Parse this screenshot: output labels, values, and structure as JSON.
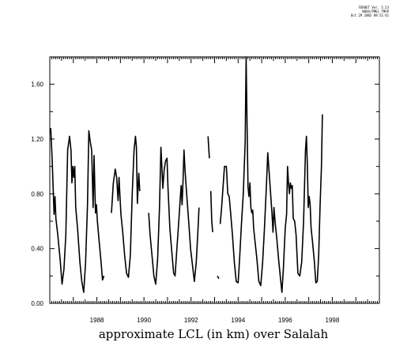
{
  "header": {
    "line1": "FERRET Ver. 5.53",
    "line2": "NOAA/PMEL TMAP",
    "line3": "Oct 29 2002 09:51:41"
  },
  "chart_data": {
    "type": "line",
    "title": "approximate LCL (in km) over Salalah",
    "xlabel": "",
    "ylabel": "",
    "xlim": [
      1986.0,
      2000.0
    ],
    "ylim": [
      0.0,
      1.8
    ],
    "y_ticks": [
      0.0,
      0.4,
      0.8,
      1.2,
      1.6
    ],
    "y_tick_labels": [
      "0.00",
      "0.40",
      "0.80",
      "1.20",
      "1.60"
    ],
    "x_ticks": [
      1988,
      1990,
      1992,
      1994,
      1996,
      1998
    ],
    "x_tick_labels": [
      "1988",
      "1990",
      "1992",
      "1994",
      "1996",
      "1998"
    ],
    "grid": false,
    "color": "#000000",
    "series": [
      {
        "segments": [
          [
            [
              1986.04,
              1.28
            ],
            [
              1986.1,
              1.05
            ],
            [
              1986.18,
              0.65
            ],
            [
              1986.22,
              0.78
            ],
            [
              1986.26,
              0.62
            ],
            [
              1986.34,
              0.5
            ],
            [
              1986.44,
              0.32
            ],
            [
              1986.52,
              0.14
            ],
            [
              1986.6,
              0.25
            ],
            [
              1986.68,
              0.5
            ],
            [
              1986.76,
              1.12
            ],
            [
              1986.84,
              1.22
            ],
            [
              1986.9,
              1.12
            ],
            [
              1986.94,
              0.88
            ],
            [
              1986.98,
              1.0
            ],
            [
              1987.02,
              0.92
            ],
            [
              1987.06,
              1.0
            ],
            [
              1987.1,
              0.7
            ],
            [
              1987.18,
              0.55
            ],
            [
              1987.28,
              0.3
            ],
            [
              1987.36,
              0.16
            ],
            [
              1987.44,
              0.08
            ],
            [
              1987.52,
              0.3
            ],
            [
              1987.6,
              0.72
            ],
            [
              1987.66,
              1.26
            ],
            [
              1987.72,
              1.18
            ],
            [
              1987.78,
              1.12
            ],
            [
              1987.84,
              0.7
            ],
            [
              1987.88,
              1.08
            ],
            [
              1987.94,
              0.66
            ],
            [
              1987.98,
              0.72
            ],
            [
              1988.02,
              0.6
            ],
            [
              1988.1,
              0.45
            ],
            [
              1988.18,
              0.3
            ],
            [
              1988.24,
              0.17
            ],
            [
              1988.3,
              0.2
            ]
          ],
          [
            [
              1988.62,
              0.66
            ],
            [
              1988.7,
              0.88
            ],
            [
              1988.78,
              0.98
            ],
            [
              1988.84,
              0.92
            ],
            [
              1988.9,
              0.75
            ],
            [
              1988.94,
              0.92
            ],
            [
              1988.98,
              0.78
            ],
            [
              1989.02,
              0.65
            ],
            [
              1989.1,
              0.52
            ],
            [
              1989.18,
              0.35
            ],
            [
              1989.26,
              0.22
            ],
            [
              1989.34,
              0.19
            ],
            [
              1989.42,
              0.35
            ],
            [
              1989.5,
              0.8
            ],
            [
              1989.58,
              1.12
            ],
            [
              1989.64,
              1.22
            ],
            [
              1989.68,
              1.14
            ],
            [
              1989.72,
              0.73
            ],
            [
              1989.78,
              0.95
            ],
            [
              1989.82,
              0.82
            ]
          ],
          [
            [
              1990.2,
              0.66
            ],
            [
              1990.26,
              0.5
            ],
            [
              1990.34,
              0.35
            ],
            [
              1990.42,
              0.2
            ],
            [
              1990.5,
              0.14
            ],
            [
              1990.58,
              0.32
            ],
            [
              1990.66,
              0.7
            ],
            [
              1990.72,
              1.14
            ],
            [
              1990.76,
              1.0
            ],
            [
              1990.8,
              0.84
            ],
            [
              1990.86,
              0.98
            ],
            [
              1990.92,
              1.04
            ],
            [
              1990.98,
              1.06
            ],
            [
              1991.02,
              0.85
            ],
            [
              1991.1,
              0.55
            ],
            [
              1991.18,
              0.38
            ],
            [
              1991.26,
              0.22
            ],
            [
              1991.32,
              0.2
            ],
            [
              1991.4,
              0.4
            ],
            [
              1991.48,
              0.6
            ],
            [
              1991.54,
              0.76
            ],
            [
              1991.58,
              0.86
            ],
            [
              1991.62,
              0.72
            ],
            [
              1991.66,
              0.9
            ],
            [
              1991.7,
              1.12
            ],
            [
              1991.74,
              0.98
            ],
            [
              1991.82,
              0.78
            ],
            [
              1991.9,
              0.6
            ],
            [
              1991.98,
              0.4
            ],
            [
              1992.06,
              0.28
            ],
            [
              1992.14,
              0.16
            ],
            [
              1992.22,
              0.3
            ],
            [
              1992.3,
              0.55
            ],
            [
              1992.34,
              0.7
            ]
          ]
        ]
      },
      {
        "segments": [
          [
            [
              1992.72,
              1.22
            ],
            [
              1992.78,
              1.06
            ]
          ],
          [
            [
              1992.84,
              0.82
            ],
            [
              1992.88,
              0.6
            ],
            [
              1992.92,
              0.52
            ]
          ],
          [
            [
              1993.12,
              0.2
            ],
            [
              1993.18,
              0.18
            ]
          ]
        ]
      },
      {
        "segments": [
          [
            [
              1993.24,
              0.58
            ],
            [
              1993.3,
              0.7
            ],
            [
              1993.36,
              0.85
            ],
            [
              1993.42,
              1.0
            ],
            [
              1993.5,
              1.0
            ],
            [
              1993.56,
              0.8
            ],
            [
              1993.62,
              0.78
            ],
            [
              1993.68,
              0.66
            ],
            [
              1993.76,
              0.5
            ],
            [
              1993.84,
              0.3
            ],
            [
              1993.92,
              0.16
            ],
            [
              1994.0,
              0.15
            ],
            [
              1994.06,
              0.32
            ],
            [
              1994.14,
              0.58
            ],
            [
              1994.22,
              0.8
            ],
            [
              1994.3,
              1.18
            ],
            [
              1994.34,
              1.8
            ],
            [
              1994.38,
              1.3
            ],
            [
              1994.42,
              0.85
            ],
            [
              1994.46,
              0.78
            ],
            [
              1994.5,
              0.88
            ],
            [
              1994.54,
              0.7
            ],
            [
              1994.58,
              0.66
            ],
            [
              1994.62,
              0.68
            ],
            [
              1994.66,
              0.55
            ],
            [
              1994.72,
              0.45
            ],
            [
              1994.8,
              0.32
            ],
            [
              1994.88,
              0.16
            ],
            [
              1994.96,
              0.13
            ],
            [
              1995.04,
              0.3
            ],
            [
              1995.12,
              0.55
            ],
            [
              1995.2,
              0.85
            ],
            [
              1995.26,
              1.1
            ],
            [
              1995.32,
              0.95
            ],
            [
              1995.38,
              0.8
            ],
            [
              1995.44,
              0.65
            ],
            [
              1995.48,
              0.52
            ],
            [
              1995.52,
              0.7
            ],
            [
              1995.58,
              0.58
            ],
            [
              1995.64,
              0.48
            ],
            [
              1995.72,
              0.32
            ],
            [
              1995.8,
              0.18
            ],
            [
              1995.86,
              0.08
            ],
            [
              1995.92,
              0.25
            ],
            [
              1996.0,
              0.55
            ],
            [
              1996.06,
              0.65
            ],
            [
              1996.1,
              1.0
            ],
            [
              1996.14,
              0.88
            ],
            [
              1996.18,
              0.8
            ],
            [
              1996.22,
              0.88
            ],
            [
              1996.26,
              0.84
            ],
            [
              1996.3,
              0.86
            ],
            [
              1996.34,
              0.62
            ],
            [
              1996.4,
              0.6
            ],
            [
              1996.46,
              0.5
            ],
            [
              1996.54,
              0.22
            ],
            [
              1996.62,
              0.2
            ],
            [
              1996.7,
              0.3
            ],
            [
              1996.78,
              0.6
            ],
            [
              1996.86,
              1.12
            ],
            [
              1996.9,
              1.22
            ],
            [
              1996.94,
              1.0
            ],
            [
              1996.98,
              0.7
            ],
            [
              1997.02,
              0.78
            ],
            [
              1997.06,
              0.72
            ],
            [
              1997.1,
              0.55
            ],
            [
              1997.16,
              0.45
            ],
            [
              1997.24,
              0.3
            ],
            [
              1997.3,
              0.15
            ],
            [
              1997.36,
              0.16
            ],
            [
              1997.42,
              0.35
            ],
            [
              1997.48,
              0.7
            ],
            [
              1997.54,
              1.0
            ],
            [
              1997.58,
              1.38
            ]
          ]
        ]
      }
    ]
  }
}
